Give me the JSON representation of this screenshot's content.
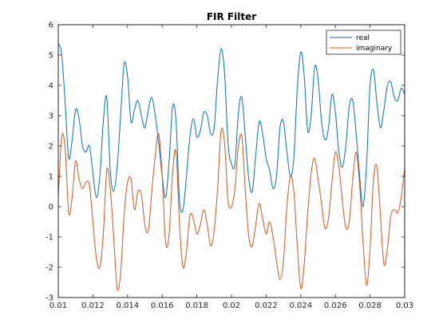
{
  "chart_data": {
    "type": "line",
    "title": "FIR Filter",
    "xlabel": "",
    "ylabel": "",
    "xlim": [
      0.01,
      0.03
    ],
    "ylim": [
      -3,
      6
    ],
    "x_ticks": [
      0.01,
      0.012,
      0.014,
      0.016,
      0.018,
      0.02,
      0.022,
      0.024,
      0.026,
      0.028,
      0.03
    ],
    "x_tick_labels": [
      "0.01",
      "0.012",
      "0.014",
      "0.016",
      "0.018",
      "0.02",
      "0.022",
      "0.024",
      "0.026",
      "0.028",
      "0.03"
    ],
    "y_ticks": [
      -3,
      -2,
      -1,
      0,
      1,
      2,
      3,
      4,
      5,
      6
    ],
    "y_tick_labels": [
      "-3",
      "-2",
      "-1",
      "0",
      "1",
      "2",
      "3",
      "4",
      "5",
      "6"
    ],
    "grid": false,
    "legend_position": "top-right",
    "series": [
      {
        "name": "real",
        "color": "#0072BD",
        "x": [
          0.01,
          0.0102,
          0.0104,
          0.0106,
          0.0108,
          0.011,
          0.0112,
          0.0114,
          0.0116,
          0.0118,
          0.012,
          0.0122,
          0.0124,
          0.0126,
          0.0128,
          0.013,
          0.0132,
          0.0134,
          0.0136,
          0.0138,
          0.014,
          0.0142,
          0.0144,
          0.0146,
          0.0148,
          0.015,
          0.0152,
          0.0154,
          0.0156,
          0.0158,
          0.016,
          0.0162,
          0.0164,
          0.0166,
          0.0168,
          0.017,
          0.0172,
          0.0174,
          0.0176,
          0.0178,
          0.018,
          0.0182,
          0.0184,
          0.0186,
          0.0188,
          0.019,
          0.0192,
          0.0194,
          0.0196,
          0.0198,
          0.02,
          0.0202,
          0.0204,
          0.0206,
          0.0208,
          0.021,
          0.0212,
          0.0214,
          0.0216,
          0.0218,
          0.022,
          0.0222,
          0.0224,
          0.0226,
          0.0228,
          0.023,
          0.0232,
          0.0234,
          0.0236,
          0.0238,
          0.024,
          0.0242,
          0.0244,
          0.0246,
          0.0248,
          0.025,
          0.0252,
          0.0254,
          0.0256,
          0.0258,
          0.026,
          0.0262,
          0.0264,
          0.0266,
          0.0268,
          0.027,
          0.0272,
          0.0274,
          0.0276,
          0.0278,
          0.028,
          0.0282,
          0.0284,
          0.0286,
          0.0288,
          0.029,
          0.0292,
          0.0294,
          0.0296,
          0.0298,
          0.03
        ],
        "y": [
          5.4,
          5.0,
          3.4,
          1.6,
          2.2,
          3.2,
          2.9,
          2.0,
          1.8,
          2.0,
          1.1,
          0.3,
          1.0,
          2.8,
          3.6,
          1.2,
          0.5,
          1.3,
          3.0,
          4.7,
          4.3,
          2.8,
          3.2,
          3.5,
          3.0,
          2.6,
          3.2,
          3.6,
          3.0,
          2.1,
          1.0,
          0.3,
          1.5,
          3.3,
          2.8,
          0.2,
          -0.1,
          1.0,
          2.3,
          2.9,
          2.3,
          2.5,
          3.1,
          3.0,
          2.4,
          2.6,
          4.2,
          5.2,
          4.4,
          2.1,
          1.4,
          1.4,
          3.1,
          3.6,
          2.3,
          0.9,
          0.5,
          1.7,
          2.8,
          2.4,
          1.6,
          1.2,
          0.6,
          1.0,
          2.6,
          2.8,
          1.8,
          1.0,
          1.6,
          3.9,
          5.1,
          4.3,
          2.5,
          3.0,
          4.6,
          4.2,
          2.8,
          2.2,
          2.6,
          3.7,
          3.1,
          1.8,
          1.3,
          2.0,
          3.3,
          3.5,
          2.4,
          1.0,
          0.0,
          1.4,
          4.0,
          4.5,
          3.4,
          2.6,
          3.2,
          4.0,
          4.1,
          3.6,
          3.5,
          3.9,
          3.7
        ]
      },
      {
        "name": "imaginary",
        "color": "#D95319",
        "x": [
          0.01,
          0.0102,
          0.0104,
          0.0106,
          0.0108,
          0.011,
          0.0112,
          0.0114,
          0.0116,
          0.0118,
          0.012,
          0.0122,
          0.0124,
          0.0126,
          0.0128,
          0.013,
          0.0132,
          0.0134,
          0.0136,
          0.0138,
          0.014,
          0.0142,
          0.0144,
          0.0146,
          0.0148,
          0.015,
          0.0152,
          0.0154,
          0.0156,
          0.0158,
          0.016,
          0.0162,
          0.0164,
          0.0166,
          0.0168,
          0.017,
          0.0172,
          0.0174,
          0.0176,
          0.0178,
          0.018,
          0.0182,
          0.0184,
          0.0186,
          0.0188,
          0.019,
          0.0192,
          0.0194,
          0.0196,
          0.0198,
          0.02,
          0.0202,
          0.0204,
          0.0206,
          0.0208,
          0.021,
          0.0212,
          0.0214,
          0.0216,
          0.0218,
          0.022,
          0.0222,
          0.0224,
          0.0226,
          0.0228,
          0.023,
          0.0232,
          0.0234,
          0.0236,
          0.0238,
          0.024,
          0.0242,
          0.0244,
          0.0246,
          0.0248,
          0.025,
          0.0252,
          0.0254,
          0.0256,
          0.0258,
          0.026,
          0.0262,
          0.0264,
          0.0266,
          0.0268,
          0.027,
          0.0272,
          0.0274,
          0.0276,
          0.0278,
          0.028,
          0.0282,
          0.0284,
          0.0286,
          0.0288,
          0.029,
          0.0292,
          0.0294,
          0.0296,
          0.0298,
          0.03
        ],
        "y": [
          0.3,
          2.3,
          1.9,
          -0.2,
          0.3,
          1.5,
          0.9,
          0.6,
          0.8,
          0.7,
          -0.5,
          -1.7,
          -2.0,
          -0.9,
          1.2,
          0.6,
          -1.0,
          -2.7,
          -2.2,
          -0.3,
          0.8,
          0.9,
          -0.1,
          0.5,
          0.4,
          -0.6,
          -0.8,
          0.5,
          1.7,
          2.4,
          1.0,
          -1.2,
          -0.9,
          1.1,
          1.8,
          -0.6,
          -2.0,
          -1.5,
          -0.3,
          -0.4,
          -0.9,
          -0.6,
          -0.1,
          -0.6,
          -1.3,
          -0.8,
          0.6,
          2.5,
          2.1,
          0.2,
          0.0,
          0.6,
          2.0,
          2.3,
          0.5,
          -1.0,
          -1.3,
          -0.6,
          0.1,
          -0.4,
          -0.9,
          -0.5,
          -1.0,
          -1.8,
          -2.4,
          -1.8,
          0.0,
          1.0,
          0.5,
          -1.3,
          -2.7,
          -1.9,
          -0.2,
          1.1,
          1.6,
          0.9,
          0.1,
          -0.7,
          -0.4,
          0.8,
          1.8,
          1.3,
          0.2,
          -0.7,
          -0.5,
          0.9,
          1.8,
          0.7,
          -1.2,
          -2.6,
          -1.4,
          0.9,
          1.3,
          -0.3,
          -1.9,
          -1.4,
          -0.3,
          -0.1,
          -0.2,
          0.3,
          1.3
        ]
      }
    ]
  }
}
